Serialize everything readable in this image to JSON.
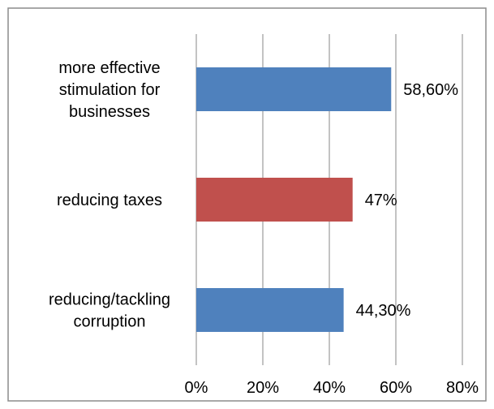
{
  "chart_data": {
    "type": "bar",
    "orientation": "horizontal",
    "categories": [
      [
        "more effective",
        "stimulation for",
        "businesses"
      ],
      [
        "reducing taxes"
      ],
      [
        "reducing/tackling",
        "corruption"
      ]
    ],
    "values": [
      58.6,
      47,
      44.3
    ],
    "data_labels": [
      "58,60%",
      "47%",
      "44,30%"
    ],
    "bar_colors": [
      "#4f81bd",
      "#c0504d",
      "#4f81bd"
    ],
    "xlim": [
      0,
      80
    ],
    "xticks": [
      0,
      20,
      40,
      60,
      80
    ],
    "xtick_labels": [
      "0%",
      "20%",
      "40%",
      "60%",
      "80%"
    ],
    "grid": true,
    "legend": false
  }
}
